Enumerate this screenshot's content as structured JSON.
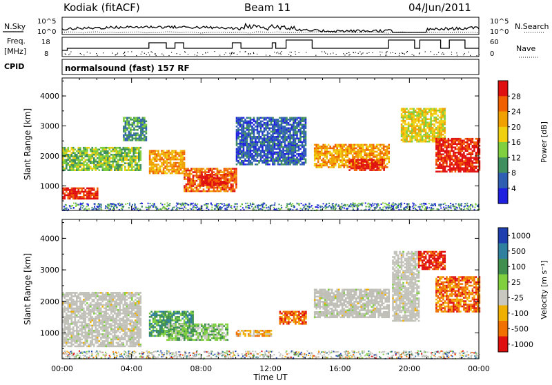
{
  "header": {
    "station": "Kodiak (fitACF)",
    "beam": "Beam 11",
    "date": "04/Jun/2011"
  },
  "summary": {
    "nsky_label": "N.Sky",
    "nsky_ticks": [
      "10^5",
      "10^0"
    ],
    "nsearch_label": "N.Search",
    "nsearch_ticks": [
      "10^5",
      "10^0"
    ],
    "freq_label_1": "Freq.",
    "freq_label_2": "[MHz]",
    "freq_ticks": [
      "18",
      "8"
    ],
    "nave_label": "Nave",
    "nave_ticks": [
      "60",
      "0"
    ],
    "cpid_label": "CPID",
    "cpid_text": "normalsound (fast) 157 RF"
  },
  "colors": {
    "power": [
      "#1f1fe0",
      "#2f5fb3",
      "#3f8f5f",
      "#7fcf3f",
      "#f0d010",
      "#f0a000",
      "#f06000",
      "#e01010"
    ],
    "velocity": [
      "#1f3fb0",
      "#2f7f9f",
      "#3f8f4f",
      "#7fcf3f",
      "#c8c8c0",
      "#f0b000",
      "#f07000",
      "#e01010"
    ],
    "ground_scatter": "#c0c0b8"
  },
  "chart_data": [
    {
      "type": "heatmap",
      "name": "power",
      "ylabel": "Slant Range [km]",
      "yticks": [
        "1000",
        "2000",
        "3000",
        "4000"
      ],
      "ylim": [
        180,
        4600
      ],
      "xlim": [
        "00:00",
        "24:00"
      ],
      "colorbar_label": "Power [dB]",
      "colorbar_ticks": [
        "4",
        "8",
        "12",
        "16",
        "20",
        "24",
        "28"
      ],
      "bands": [
        {
          "t0": 0.0,
          "t1": 2.0,
          "r0": 600,
          "r1": 950,
          "level": 7
        },
        {
          "t0": 0.0,
          "t1": 4.5,
          "r0": 1500,
          "r1": 2300,
          "level": 3
        },
        {
          "t0": 3.5,
          "t1": 4.8,
          "r0": 2500,
          "r1": 3300,
          "level": 2
        },
        {
          "t0": 5.0,
          "t1": 7.0,
          "r0": 1400,
          "r1": 2200,
          "level": 5
        },
        {
          "t0": 7.0,
          "t1": 10.0,
          "r0": 800,
          "r1": 1600,
          "level": 6
        },
        {
          "t0": 8.0,
          "t1": 9.5,
          "r0": 1000,
          "r1": 1400,
          "level": 7
        },
        {
          "t0": 10.0,
          "t1": 14.0,
          "r0": 1700,
          "r1": 3300,
          "level": 1
        },
        {
          "t0": 14.5,
          "t1": 18.8,
          "r0": 1600,
          "r1": 2400,
          "level": 5
        },
        {
          "t0": 16.5,
          "t1": 18.5,
          "r0": 1500,
          "r1": 1900,
          "level": 7
        },
        {
          "t0": 19.5,
          "t1": 22.0,
          "r0": 2500,
          "r1": 3600,
          "level": 4
        },
        {
          "t0": 21.5,
          "t1": 24.0,
          "r0": 1500,
          "r1": 2600,
          "level": 7
        }
      ]
    },
    {
      "type": "heatmap",
      "name": "velocity",
      "ylabel": "Slant Range [km]",
      "yticks": [
        "1000",
        "2000",
        "3000",
        "4000"
      ],
      "ylim": [
        180,
        4600
      ],
      "xlim": [
        "00:00",
        "24:00"
      ],
      "xticks": [
        "00:00",
        "04:00",
        "08:00",
        "12:00",
        "16:00",
        "20:00",
        "00:00"
      ],
      "xlabel": "Time UT",
      "colorbar_label": "Velocity [m s⁻¹]",
      "colorbar_ticks": [
        "1000",
        "500",
        "100",
        "25",
        "-25",
        "-100",
        "-500",
        "-1000"
      ],
      "bands": [
        {
          "t0": 0.0,
          "t1": 4.5,
          "r0": 600,
          "r1": 2300,
          "level": 4
        },
        {
          "t0": 5.0,
          "t1": 7.5,
          "r0": 900,
          "r1": 1700,
          "level": 2
        },
        {
          "t0": 6.0,
          "t1": 9.5,
          "r0": 800,
          "r1": 1300,
          "level": 3
        },
        {
          "t0": 10.0,
          "t1": 12.0,
          "r0": 900,
          "r1": 1100,
          "level": 5
        },
        {
          "t0": 12.5,
          "t1": 14.0,
          "r0": 1300,
          "r1": 1700,
          "level": 6
        },
        {
          "t0": 14.5,
          "t1": 18.8,
          "r0": 1500,
          "r1": 2400,
          "level": 4
        },
        {
          "t0": 19.0,
          "t1": 20.5,
          "r0": 1400,
          "r1": 3600,
          "level": 4
        },
        {
          "t0": 20.5,
          "t1": 22.0,
          "r0": 3000,
          "r1": 3600,
          "level": 7
        },
        {
          "t0": 21.5,
          "t1": 24.0,
          "r0": 1700,
          "r1": 2800,
          "level": 6
        }
      ]
    }
  ]
}
